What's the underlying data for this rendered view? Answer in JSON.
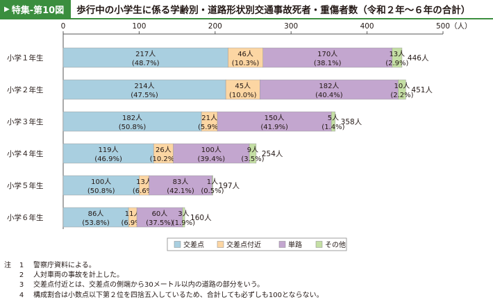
{
  "header": {
    "badge_icon": "triangle-right-icon",
    "badge": "特集-第10図",
    "title": "歩行中の小学生に係る学齢別・道路形状別交通事故死者・重傷者数（令和２年～６年の合計）"
  },
  "chart_data": {
    "type": "bar",
    "orientation": "horizontal",
    "stacked": true,
    "title": "歩行中の小学生に係る学齢別・道路形状別交通事故死者・重傷者数（令和２年～６年の合計）",
    "categories": [
      "小学１年生",
      "小学２年生",
      "小学３年生",
      "小学４年生",
      "小学５年生",
      "小学６年生"
    ],
    "x_ticks": [
      0,
      100,
      200,
      300,
      400,
      500
    ],
    "x_unit": "（人）",
    "xlim": [
      0,
      500
    ],
    "grid": false,
    "legend_position": "bottom",
    "series": [
      {
        "name": "交差点",
        "color": "#a9cfe0",
        "values": [
          217,
          214,
          182,
          119,
          100,
          86
        ],
        "labels": [
          "217人",
          "214人",
          "182人",
          "119人",
          "100人",
          "86人"
        ],
        "percents": [
          "(48.7%)",
          "(47.5%)",
          "(50.8%)",
          "(46.9%)",
          "(50.8%)",
          "(53.8%)"
        ]
      },
      {
        "name": "交差点付近",
        "color": "#fcd6a3",
        "values": [
          46,
          45,
          21,
          26,
          13,
          11
        ],
        "labels": [
          "46人",
          "45人",
          "21人",
          "26人",
          "13人",
          "11人"
        ],
        "percents": [
          "(10.3%)",
          "(10.0%)",
          "(5.9%)",
          "(10.2%)",
          "(6.6%)",
          "(6.9%)"
        ]
      },
      {
        "name": "単路",
        "color": "#c3a6cf",
        "values": [
          170,
          182,
          150,
          100,
          83,
          60
        ],
        "labels": [
          "170人",
          "182人",
          "150人",
          "100人",
          "83人",
          "60人"
        ],
        "percents": [
          "(38.1%)",
          "(40.4%)",
          "(41.9%)",
          "(39.4%)",
          "(42.1%)",
          "(37.5%)"
        ]
      },
      {
        "name": "その他",
        "color": "#c4dfa4",
        "values": [
          13,
          10,
          5,
          9,
          1,
          3
        ],
        "labels": [
          "13人",
          "10人",
          "5人",
          "9人",
          "1人",
          "3人"
        ],
        "percents": [
          "(2.9%)",
          "(2.2%)",
          "(1.4%)",
          "(3.5%)",
          "(0.5%)",
          "(1.9%)"
        ]
      }
    ],
    "totals": [
      446,
      451,
      358,
      254,
      197,
      160
    ],
    "total_labels": [
      "446人",
      "451人",
      "358人",
      "254人",
      "197人",
      "160人"
    ]
  },
  "notes": {
    "prefix": "注",
    "items": [
      {
        "num": "1",
        "text": "警察庁資料による。"
      },
      {
        "num": "2",
        "text": "人対車両の事故を計上した。"
      },
      {
        "num": "3",
        "text": "交差点付近とは、交差点の側端から30メートル以内の道路の部分をいう。"
      },
      {
        "num": "4",
        "text": "構成割合は小数点以下第２位を四捨五入しているため、合計しても必ずしも100とならない。"
      }
    ]
  }
}
